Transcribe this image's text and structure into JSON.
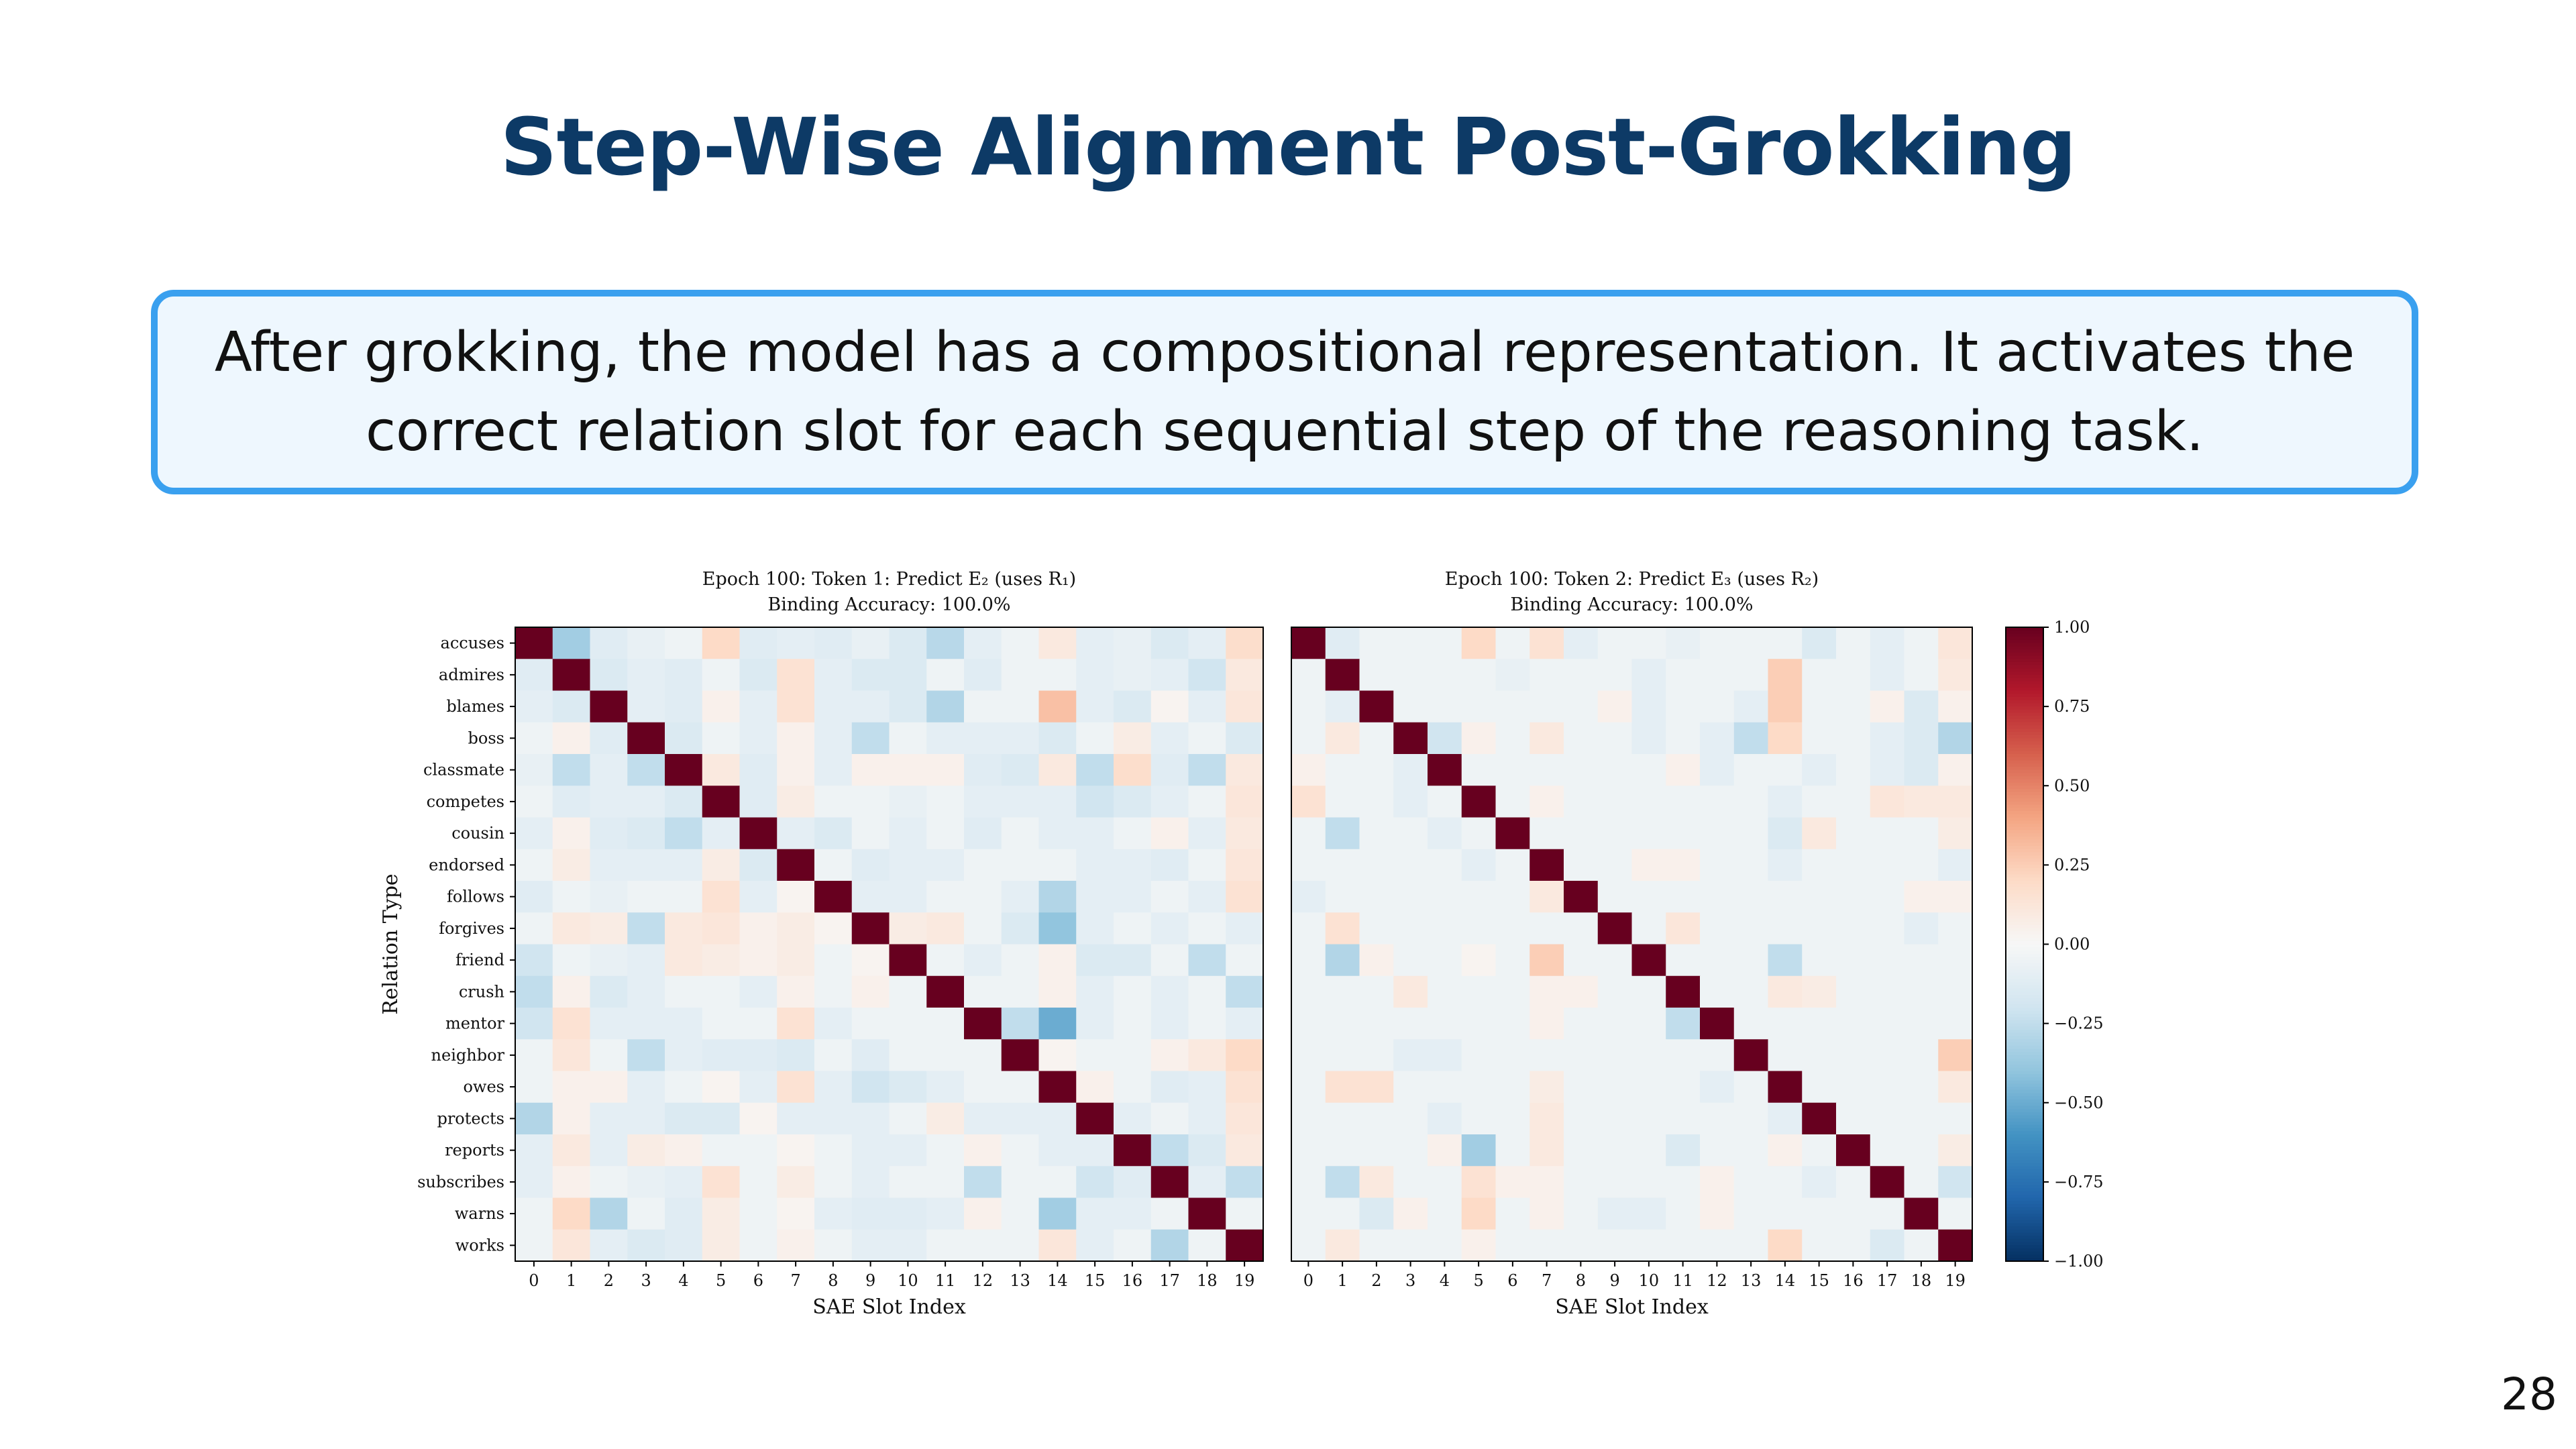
{
  "slide": {
    "title": "Step-Wise Alignment Post-Grokking",
    "callout": "After grokking, the model has a compositional representation. It activates the correct relation slot for each sequential step of the reasoning task.",
    "page_number": "28"
  },
  "colors": {
    "title": "#0d3a66",
    "callout_border": "#3aa0ef",
    "callout_bg": "#eef7fe",
    "colormap": [
      "#053061",
      "#2166ac",
      "#4393c3",
      "#92c5de",
      "#d1e5f0",
      "#f7f7f7",
      "#fddbc7",
      "#f4a582",
      "#d6604d",
      "#b2182b",
      "#67001f"
    ]
  },
  "chart_data": [
    {
      "type": "heatmap",
      "title": "Epoch 100: Token 1: Predict E₂ (uses R₁)",
      "subtitle": "Binding Accuracy: 100.0%",
      "xlabel": "SAE Slot Index",
      "ylabel": "Relation Type",
      "x_ticks": [
        "0",
        "1",
        "2",
        "3",
        "4",
        "5",
        "6",
        "7",
        "8",
        "9",
        "10",
        "11",
        "12",
        "13",
        "14",
        "15",
        "16",
        "17",
        "18",
        "19"
      ],
      "y_ticks": [
        "accuses",
        "admires",
        "blames",
        "boss",
        "classmate",
        "competes",
        "cousin",
        "endorsed",
        "follows",
        "forgives",
        "friend",
        "crush",
        "mentor",
        "neighbor",
        "owes",
        "protects",
        "reports",
        "subscribes",
        "warns",
        "works"
      ],
      "value_range": [
        -1,
        1
      ],
      "values": [
        [
          1.0,
          -0.35,
          -0.12,
          -0.08,
          -0.05,
          0.2,
          -0.12,
          -0.1,
          -0.12,
          -0.08,
          -0.15,
          -0.28,
          -0.1,
          -0.05,
          0.1,
          -0.1,
          -0.08,
          -0.15,
          -0.1,
          0.18
        ],
        [
          -0.12,
          1.0,
          -0.15,
          -0.1,
          -0.12,
          -0.05,
          -0.15,
          0.15,
          -0.1,
          -0.15,
          -0.15,
          -0.05,
          -0.12,
          -0.05,
          -0.05,
          -0.1,
          -0.08,
          -0.1,
          -0.2,
          0.1
        ],
        [
          -0.1,
          -0.15,
          1.0,
          -0.1,
          -0.12,
          0.05,
          -0.1,
          0.15,
          -0.1,
          -0.1,
          -0.15,
          -0.3,
          -0.05,
          -0.05,
          0.3,
          -0.1,
          -0.15,
          0.03,
          -0.1,
          0.12
        ],
        [
          -0.05,
          0.05,
          -0.12,
          1.0,
          -0.15,
          -0.05,
          -0.1,
          0.05,
          -0.1,
          -0.25,
          -0.05,
          -0.1,
          -0.1,
          -0.1,
          -0.15,
          -0.05,
          0.08,
          -0.1,
          -0.05,
          -0.15
        ],
        [
          -0.08,
          -0.25,
          -0.1,
          -0.25,
          1.0,
          0.1,
          -0.12,
          0.05,
          -0.1,
          0.05,
          0.05,
          0.05,
          -0.12,
          -0.15,
          0.1,
          -0.25,
          0.18,
          -0.12,
          -0.25,
          0.1
        ],
        [
          -0.05,
          -0.12,
          -0.1,
          -0.1,
          -0.15,
          1.0,
          -0.12,
          0.08,
          -0.05,
          -0.05,
          -0.08,
          -0.05,
          -0.1,
          -0.1,
          -0.1,
          -0.2,
          -0.15,
          -0.1,
          -0.05,
          0.12
        ],
        [
          -0.1,
          0.05,
          -0.12,
          -0.15,
          -0.25,
          -0.1,
          1.0,
          -0.1,
          -0.15,
          -0.05,
          -0.1,
          -0.05,
          -0.12,
          -0.05,
          -0.1,
          -0.1,
          -0.05,
          0.05,
          -0.1,
          0.1
        ],
        [
          -0.05,
          0.08,
          -0.1,
          -0.1,
          -0.1,
          0.08,
          -0.15,
          1.0,
          -0.05,
          -0.12,
          -0.1,
          -0.1,
          -0.05,
          -0.05,
          -0.05,
          -0.1,
          -0.1,
          -0.12,
          -0.05,
          0.12
        ],
        [
          -0.12,
          -0.05,
          -0.08,
          -0.05,
          -0.05,
          0.15,
          -0.1,
          0.03,
          1.0,
          -0.1,
          -0.1,
          -0.05,
          -0.05,
          -0.1,
          -0.3,
          -0.1,
          -0.1,
          -0.05,
          -0.1,
          0.15
        ],
        [
          -0.05,
          0.1,
          0.08,
          -0.25,
          0.1,
          0.12,
          0.05,
          0.08,
          0.03,
          1.0,
          0.08,
          0.1,
          -0.05,
          -0.15,
          -0.4,
          -0.1,
          -0.05,
          -0.1,
          -0.05,
          -0.1
        ],
        [
          -0.2,
          -0.05,
          -0.08,
          -0.1,
          0.1,
          0.08,
          0.05,
          0.08,
          -0.05,
          0.03,
          1.0,
          -0.05,
          -0.1,
          -0.05,
          0.05,
          -0.15,
          -0.15,
          -0.05,
          -0.25,
          -0.05
        ],
        [
          -0.25,
          0.05,
          -0.15,
          -0.1,
          -0.05,
          -0.05,
          -0.1,
          0.05,
          -0.05,
          0.05,
          -0.05,
          1.0,
          -0.05,
          -0.05,
          0.05,
          -0.1,
          -0.05,
          -0.1,
          -0.05,
          -0.25
        ],
        [
          -0.2,
          0.15,
          -0.1,
          -0.1,
          -0.1,
          -0.05,
          -0.05,
          0.15,
          -0.1,
          -0.05,
          -0.05,
          -0.05,
          1.0,
          -0.25,
          -0.5,
          -0.1,
          -0.05,
          -0.1,
          -0.05,
          -0.1
        ],
        [
          -0.05,
          0.12,
          -0.05,
          -0.25,
          -0.1,
          -0.12,
          -0.12,
          -0.15,
          -0.05,
          -0.12,
          -0.05,
          -0.05,
          -0.05,
          1.0,
          0.03,
          -0.05,
          -0.05,
          0.05,
          0.1,
          0.2
        ],
        [
          -0.05,
          0.05,
          0.05,
          -0.1,
          -0.05,
          0.03,
          -0.1,
          0.15,
          -0.1,
          -0.2,
          -0.15,
          -0.1,
          -0.05,
          -0.05,
          1.0,
          0.05,
          -0.05,
          -0.12,
          -0.1,
          0.15
        ],
        [
          -0.3,
          0.05,
          -0.1,
          -0.1,
          -0.15,
          -0.15,
          0.03,
          -0.1,
          -0.1,
          -0.1,
          -0.05,
          0.08,
          -0.1,
          -0.1,
          -0.1,
          1.0,
          -0.1,
          -0.05,
          -0.1,
          0.12
        ],
        [
          -0.1,
          0.1,
          -0.1,
          0.08,
          0.05,
          -0.05,
          -0.05,
          0.03,
          -0.05,
          -0.1,
          -0.1,
          -0.05,
          0.05,
          -0.05,
          -0.1,
          -0.1,
          1.0,
          -0.25,
          -0.15,
          0.1
        ],
        [
          -0.1,
          0.05,
          -0.05,
          -0.08,
          -0.1,
          0.15,
          -0.05,
          0.08,
          -0.05,
          -0.1,
          -0.05,
          -0.05,
          -0.25,
          -0.05,
          -0.05,
          -0.2,
          -0.12,
          1.0,
          -0.1,
          -0.25
        ],
        [
          -0.05,
          0.2,
          -0.3,
          -0.05,
          -0.12,
          0.08,
          -0.05,
          0.03,
          -0.1,
          -0.12,
          -0.12,
          -0.1,
          0.05,
          -0.05,
          -0.35,
          -0.1,
          -0.1,
          -0.05,
          1.0,
          -0.05
        ],
        [
          -0.05,
          0.12,
          -0.1,
          -0.15,
          -0.12,
          0.08,
          -0.05,
          0.05,
          -0.05,
          -0.1,
          -0.1,
          -0.05,
          -0.05,
          -0.05,
          0.12,
          -0.1,
          -0.05,
          -0.3,
          -0.05,
          1.0
        ]
      ]
    },
    {
      "type": "heatmap",
      "title": "Epoch 100: Token 2: Predict E₃ (uses R₂)",
      "subtitle": "Binding Accuracy: 100.0%",
      "xlabel": "SAE Slot Index",
      "ylabel": "",
      "x_ticks": [
        "0",
        "1",
        "2",
        "3",
        "4",
        "5",
        "6",
        "7",
        "8",
        "9",
        "10",
        "11",
        "12",
        "13",
        "14",
        "15",
        "16",
        "17",
        "18",
        "19"
      ],
      "y_ticks": [
        "accuses",
        "admires",
        "blames",
        "boss",
        "classmate",
        "competes",
        "cousin",
        "endorsed",
        "follows",
        "forgives",
        "friend",
        "crush",
        "mentor",
        "neighbor",
        "owes",
        "protects",
        "reports",
        "subscribes",
        "warns",
        "works"
      ],
      "value_range": [
        -1,
        1
      ],
      "values": [
        [
          1.0,
          -0.12,
          -0.05,
          -0.05,
          -0.05,
          0.2,
          -0.05,
          0.15,
          -0.1,
          -0.05,
          -0.05,
          -0.08,
          -0.05,
          -0.05,
          -0.05,
          -0.15,
          -0.05,
          -0.1,
          -0.05,
          0.12
        ],
        [
          -0.05,
          1.0,
          -0.05,
          -0.05,
          -0.05,
          -0.05,
          -0.08,
          -0.05,
          -0.05,
          -0.05,
          -0.1,
          -0.05,
          -0.05,
          -0.05,
          0.25,
          -0.05,
          -0.05,
          -0.1,
          -0.05,
          0.1
        ],
        [
          -0.05,
          -0.1,
          1.0,
          -0.05,
          -0.05,
          -0.05,
          -0.05,
          -0.05,
          -0.05,
          0.05,
          -0.1,
          -0.05,
          -0.05,
          -0.1,
          0.25,
          -0.05,
          -0.05,
          0.05,
          -0.15,
          0.05
        ],
        [
          -0.05,
          0.1,
          -0.05,
          1.0,
          -0.2,
          0.05,
          -0.05,
          0.1,
          -0.05,
          -0.05,
          -0.1,
          -0.05,
          -0.1,
          -0.25,
          0.2,
          -0.05,
          -0.05,
          -0.1,
          -0.15,
          -0.3
        ],
        [
          0.05,
          -0.05,
          -0.05,
          -0.1,
          1.0,
          -0.05,
          -0.05,
          -0.05,
          -0.05,
          -0.05,
          -0.05,
          0.05,
          -0.1,
          -0.05,
          -0.05,
          -0.1,
          -0.05,
          -0.1,
          -0.15,
          0.05
        ],
        [
          0.15,
          -0.05,
          -0.05,
          -0.1,
          -0.05,
          1.0,
          -0.05,
          0.05,
          -0.05,
          -0.05,
          -0.05,
          -0.05,
          -0.05,
          -0.05,
          -0.1,
          -0.05,
          -0.05,
          0.12,
          0.1,
          0.1
        ],
        [
          -0.05,
          -0.25,
          -0.05,
          -0.05,
          -0.1,
          -0.05,
          1.0,
          -0.05,
          -0.05,
          -0.05,
          -0.05,
          -0.05,
          -0.05,
          -0.05,
          -0.15,
          0.1,
          -0.05,
          -0.05,
          -0.05,
          0.08
        ],
        [
          -0.05,
          -0.05,
          -0.05,
          -0.05,
          -0.05,
          -0.1,
          -0.05,
          1.0,
          -0.05,
          -0.05,
          0.05,
          0.05,
          -0.05,
          -0.05,
          -0.1,
          -0.05,
          -0.05,
          -0.05,
          -0.05,
          -0.1
        ],
        [
          -0.1,
          -0.05,
          -0.05,
          -0.05,
          -0.05,
          -0.05,
          -0.05,
          0.1,
          1.0,
          -0.05,
          -0.05,
          -0.05,
          -0.05,
          -0.05,
          -0.05,
          -0.05,
          -0.05,
          -0.05,
          0.05,
          0.05
        ],
        [
          -0.05,
          0.15,
          -0.05,
          -0.05,
          -0.05,
          -0.05,
          -0.05,
          -0.05,
          -0.05,
          1.0,
          -0.05,
          0.12,
          -0.05,
          -0.05,
          -0.05,
          -0.05,
          -0.05,
          -0.05,
          -0.1,
          -0.05
        ],
        [
          -0.05,
          -0.3,
          0.05,
          -0.05,
          -0.05,
          0.03,
          -0.05,
          0.25,
          -0.05,
          -0.05,
          1.0,
          -0.05,
          -0.05,
          -0.05,
          -0.25,
          -0.05,
          -0.05,
          -0.05,
          -0.05,
          -0.05
        ],
        [
          -0.05,
          -0.05,
          -0.05,
          0.1,
          -0.05,
          -0.05,
          -0.05,
          0.05,
          0.05,
          -0.05,
          -0.05,
          1.0,
          -0.05,
          -0.05,
          0.1,
          0.08,
          -0.05,
          -0.05,
          -0.05,
          -0.05
        ],
        [
          -0.05,
          -0.05,
          -0.05,
          -0.05,
          -0.05,
          -0.05,
          -0.05,
          0.05,
          -0.05,
          -0.05,
          -0.05,
          -0.25,
          1.0,
          -0.05,
          -0.05,
          -0.05,
          -0.05,
          -0.05,
          -0.05,
          -0.05
        ],
        [
          -0.05,
          -0.05,
          -0.05,
          -0.1,
          -0.1,
          -0.05,
          -0.05,
          -0.05,
          -0.05,
          -0.05,
          -0.05,
          -0.05,
          -0.05,
          1.0,
          -0.05,
          -0.05,
          -0.05,
          -0.05,
          -0.05,
          0.25
        ],
        [
          -0.05,
          0.15,
          0.15,
          -0.05,
          -0.05,
          -0.05,
          -0.05,
          0.08,
          -0.05,
          -0.05,
          -0.05,
          -0.05,
          -0.1,
          -0.05,
          1.0,
          -0.05,
          -0.05,
          -0.05,
          -0.05,
          0.1
        ],
        [
          -0.05,
          -0.05,
          -0.05,
          -0.05,
          -0.1,
          -0.05,
          -0.05,
          0.1,
          -0.05,
          -0.05,
          -0.05,
          -0.05,
          -0.05,
          -0.05,
          -0.1,
          1.0,
          -0.05,
          -0.05,
          -0.05,
          -0.05
        ],
        [
          -0.05,
          -0.05,
          -0.05,
          -0.05,
          0.05,
          -0.35,
          -0.05,
          0.1,
          -0.05,
          -0.05,
          -0.05,
          -0.15,
          -0.05,
          -0.05,
          0.05,
          -0.05,
          1.0,
          -0.05,
          -0.05,
          0.08
        ],
        [
          -0.05,
          -0.25,
          0.1,
          -0.05,
          -0.05,
          0.15,
          0.05,
          0.05,
          -0.05,
          -0.05,
          -0.05,
          -0.05,
          0.05,
          -0.05,
          -0.05,
          -0.1,
          -0.05,
          1.0,
          -0.05,
          -0.2
        ],
        [
          -0.05,
          -0.05,
          -0.15,
          0.05,
          -0.05,
          0.2,
          -0.05,
          0.05,
          -0.05,
          -0.1,
          -0.1,
          -0.05,
          0.05,
          -0.05,
          -0.05,
          -0.05,
          -0.05,
          -0.05,
          1.0,
          -0.05
        ],
        [
          -0.05,
          0.1,
          -0.05,
          -0.05,
          -0.05,
          0.05,
          -0.05,
          -0.05,
          -0.05,
          -0.05,
          -0.05,
          -0.05,
          -0.05,
          -0.05,
          0.2,
          -0.05,
          -0.05,
          -0.15,
          -0.05,
          1.0
        ]
      ]
    }
  ],
  "colorbar": {
    "ticks": [
      "1.00",
      "0.75",
      "0.50",
      "0.25",
      "0.00",
      "−0.25",
      "−0.50",
      "−0.75",
      "−1.00"
    ],
    "range": [
      -1,
      1
    ]
  }
}
